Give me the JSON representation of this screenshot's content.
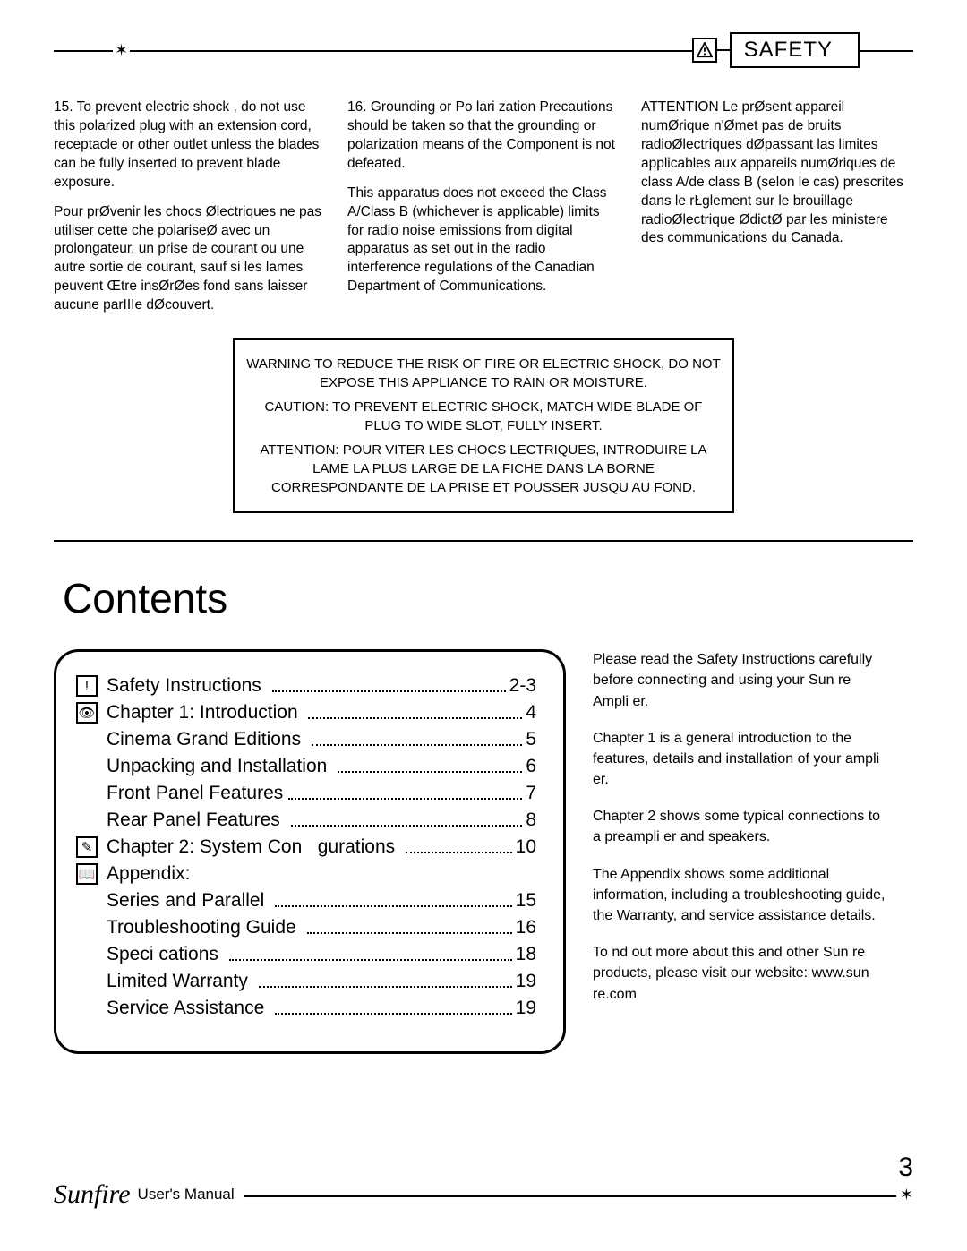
{
  "header": {
    "icon_glyph": "!",
    "label": "SAFETY",
    "star_glyph": "✶"
  },
  "safety_cols": {
    "c1p1": "15. To prevent electric shock , do not use this polarized plug with an extension cord, receptacle or other outlet unless the blades can be fully inserted to prevent blade exposure.",
    "c1p2": "Pour prØvenir les chocs Ølectriques ne pas utiliser cette che polariseØ avec un prolongateur, un prise de courant ou une autre sortie de courant, sauf si les lames peuvent Œtre insØrØes fond sans laisser aucune parIIIe dØcouvert.",
    "c2p1": "16. Grounding or Po lari zation Precautions should be taken so that the grounding or polarization means of the Component is not defeated.",
    "c2p2": "This apparatus does not exceed the Class A/Class B (whichever is applicable) limits for radio noise emissions from digital apparatus as set out in the radio interference regulations of the Canadian Department of Communications.",
    "c3p1": "ATTENTION Le prØsent appareil numØrique n'Ømet pas de bruits radioØlectriques dØpassant las limites applicables aux appareils numØriques de class A/de class B (selon le cas) prescrites dans le rŁglement sur le brouillage radioØlectrique ØdictØ par les ministere des communications du Canada."
  },
  "warn": {
    "l1": "WARNING TO REDUCE THE RISK OF FIRE OR ELECTRIC SHOCK, DO NOT EXPOSE THIS APPLIANCE TO RAIN OR MOISTURE.",
    "l2": "CAUTION: TO PREVENT ELECTRIC SHOCK, MATCH WIDE BLADE OF PLUG TO WIDE SLOT, FULLY INSERT.",
    "l3": "ATTENTION: POUR VITER LES CHOCS LECTRIQUES, INTRODUIRE LA LAME LA PLUS LARGE DE LA FICHE DANS LA BORNE CORRESPONDANTE DE LA PRISE ET POUSSER JUSQU AU FOND."
  },
  "contents": {
    "title": "Contents",
    "toc": [
      {
        "icon": "!",
        "label": "Safety Instructions ",
        "page": "2-3"
      },
      {
        "icon": "👁",
        "label": "Chapter 1: Introduction ",
        "page": "4"
      },
      {
        "indent": true,
        "label": "Cinema Grand Editions ",
        "page": "5"
      },
      {
        "indent": true,
        "label": "Unpacking and Installation ",
        "page": "6"
      },
      {
        "indent": true,
        "label": "Front Panel Features",
        "page": "7"
      },
      {
        "indent": true,
        "label": "Rear Panel Features ",
        "page": "8"
      },
      {
        "icon": "✎",
        "label": "Chapter 2: System Con   gurations ",
        "page": "10"
      },
      {
        "icon": "📖",
        "label": "Appendix:",
        "page": ""
      },
      {
        "indent": true,
        "label": "Series and Parallel ",
        "page": "15"
      },
      {
        "indent": true,
        "label": "Troubleshooting Guide ",
        "page": "16"
      },
      {
        "indent": true,
        "label": "Speci cations ",
        "page": "18"
      },
      {
        "indent": true,
        "label": "Limited Warranty ",
        "page": "19"
      },
      {
        "indent": true,
        "label": "Service Assistance ",
        "page": "19"
      }
    ],
    "side": {
      "p1": "Please read the Safety Instructions carefully before connecting and using your Sun re Ampli er.",
      "p2": "Chapter 1 is a general introduction to the features, details and installation of your ampli er.",
      "p3": "Chapter 2 shows some typical connections to a preampli er and speakers.",
      "p4": "The Appendix shows some additional information, including a troubleshooting guide, the Warranty, and service assistance details.",
      "p5": "To nd out more about this and other Sun re products, please visit our website: www.sun re.com"
    }
  },
  "footer": {
    "brand": "Sunfire",
    "manual": "User's Manual",
    "star": "✶",
    "page": "3"
  }
}
